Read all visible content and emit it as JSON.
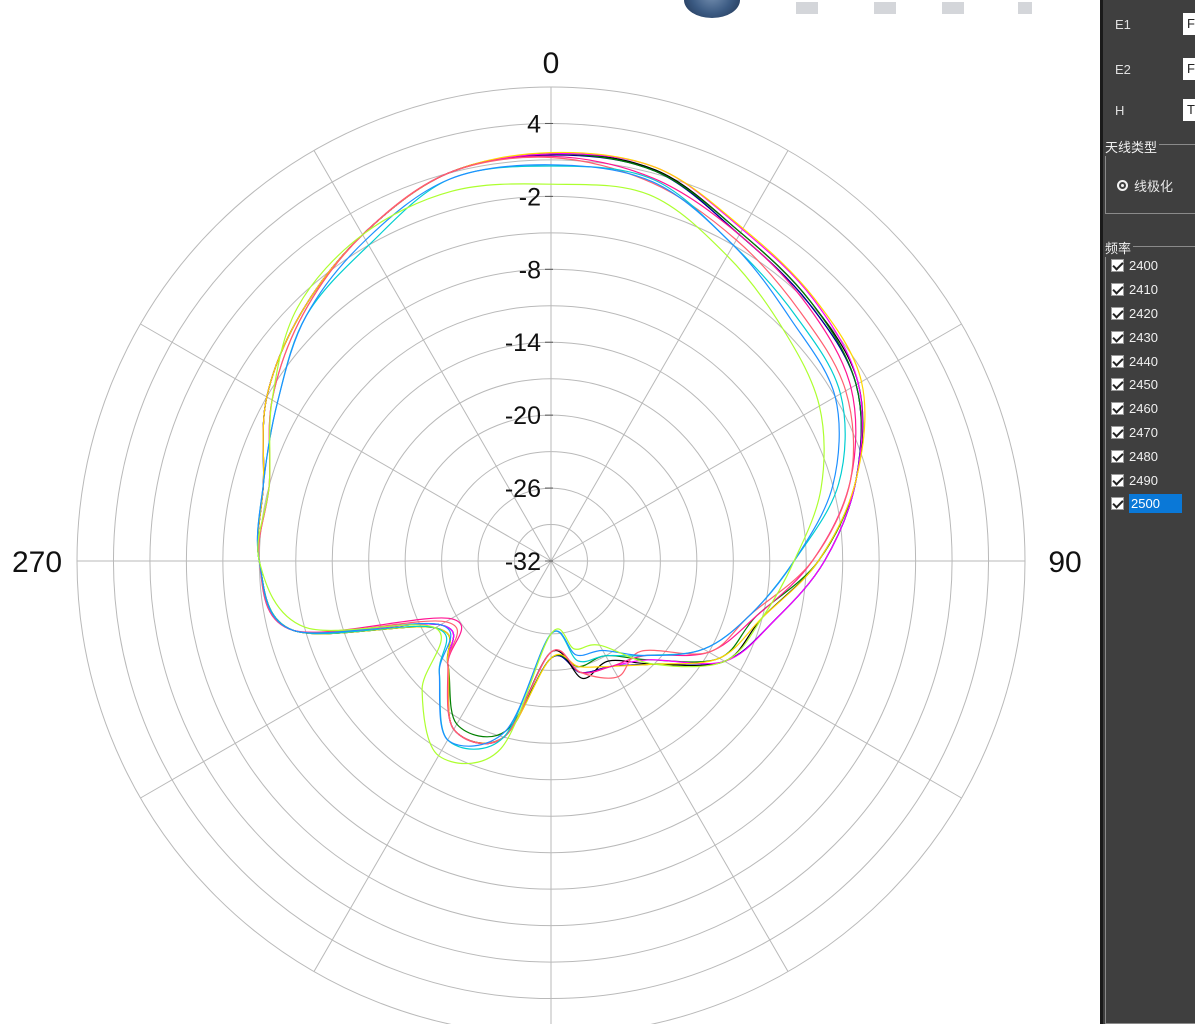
{
  "side_panel": {
    "fields": [
      {
        "label": "E1",
        "value": "F"
      },
      {
        "label": "E2",
        "value": "F"
      },
      {
        "label": "H",
        "value": "T"
      }
    ],
    "antenna_type_group": {
      "title": "天线类型",
      "option": "线极化"
    },
    "frequency_group": {
      "title": "频率",
      "items": [
        "2400",
        "2410",
        "2420",
        "2430",
        "2440",
        "2450",
        "2460",
        "2470",
        "2480",
        "2490",
        "2500"
      ],
      "selected": "2500"
    }
  },
  "chart_data": {
    "type": "polar-line",
    "theta_labels": [
      "0",
      "90",
      "270"
    ],
    "r_tick_labels": [
      "4",
      "-2",
      "-8",
      "-14",
      "-20",
      "-26",
      "-32"
    ],
    "r_range": [
      -32,
      7
    ],
    "theta_direction": "clockwise",
    "theta_zero": "top",
    "grid": true,
    "theta_deg": [
      0,
      15,
      30,
      45,
      60,
      75,
      90,
      105,
      120,
      135,
      150,
      165,
      180,
      195,
      210,
      225,
      240,
      255,
      270,
      285,
      300,
      315,
      330,
      345
    ],
    "series": [
      {
        "name": "2400",
        "color": "#0000ff",
        "values": [
          1.5,
          1.2,
          -1,
          -2,
          -3,
          -6,
          -9.5,
          -13,
          -15.5,
          -20,
          -22,
          -22.5,
          -24,
          -17,
          -16,
          -20,
          -21.5,
          -10,
          -8,
          -7.5,
          -5,
          -3,
          -1,
          1
        ]
      },
      {
        "name": "2410",
        "color": "#00008b",
        "values": [
          1.4,
          1.2,
          -1,
          -2,
          -3,
          -6,
          -9.5,
          -13,
          -15.5,
          -20,
          -22,
          -22.5,
          -24,
          -17,
          -16,
          -20,
          -21.5,
          -10,
          -8,
          -7.5,
          -5,
          -3,
          -1,
          1
        ]
      },
      {
        "name": "2420",
        "color": "#000000",
        "values": [
          1.5,
          1.3,
          -0.8,
          -1.8,
          -2.8,
          -6,
          -10,
          -14,
          -15.5,
          -20,
          -22.5,
          -22,
          -24.5,
          -17,
          -16,
          -20,
          -21,
          -10,
          -8,
          -7.5,
          -5,
          -3,
          -1,
          1
        ]
      },
      {
        "name": "2430",
        "color": "#008000",
        "values": [
          1.5,
          1.2,
          -0.8,
          -1.8,
          -3,
          -6,
          -10,
          -14.5,
          -16,
          -20.5,
          -23,
          -23,
          -24,
          -17.5,
          -16.5,
          -20,
          -21,
          -10,
          -8,
          -7.5,
          -5,
          -3,
          -1,
          1
        ]
      },
      {
        "name": "2440",
        "color": "#ff00ff",
        "values": [
          1.5,
          1.5,
          -0.5,
          -1.5,
          -2.8,
          -6,
          -9.5,
          -13,
          -15.5,
          -20.5,
          -22,
          -22.5,
          -24.5,
          -17,
          -16,
          -20,
          -21.5,
          -10,
          -8,
          -7.5,
          -5,
          -3,
          -1,
          1
        ]
      },
      {
        "name": "2450",
        "color": "#ffd700",
        "values": [
          1.6,
          1.5,
          -0.4,
          -1.4,
          -2.5,
          -6,
          -10,
          -14,
          -16,
          -20,
          -22,
          -23,
          -24,
          -17,
          -16,
          -20,
          -21,
          -10,
          -8,
          -7.5,
          -5,
          -3,
          -1,
          1
        ]
      },
      {
        "name": "2460",
        "color": "#ff1493",
        "values": [
          1.3,
          0.6,
          -1,
          -2.2,
          -3.5,
          -6.5,
          -10.5,
          -14.5,
          -17,
          -21,
          -22,
          -22.5,
          -24.5,
          -17,
          -16,
          -20,
          -22.5,
          -10,
          -8,
          -8,
          -5.5,
          -3.2,
          -1,
          1
        ]
      },
      {
        "name": "2470",
        "color": "#ff6070",
        "values": [
          1.2,
          0.2,
          -1.5,
          -3,
          -4,
          -6.5,
          -10.5,
          -15,
          -17,
          -21.5,
          -21,
          -22.5,
          -24.5,
          -17,
          -16,
          -20,
          -22,
          -10,
          -8,
          -8,
          -5.5,
          -3.2,
          -1,
          1
        ]
      },
      {
        "name": "2480",
        "color": "#00ced1",
        "values": [
          0.5,
          0.5,
          -2,
          -3.5,
          -4.5,
          -7.5,
          -12,
          -15,
          -17.5,
          -21,
          -23,
          -23.5,
          -26,
          -17,
          -15,
          -19,
          -21,
          -10,
          -8,
          -7.5,
          -6,
          -3.5,
          -2,
          0.5
        ]
      },
      {
        "name": "2490",
        "color": "#1e90ff",
        "values": [
          0.6,
          0.3,
          -2,
          -4,
          -5,
          -8,
          -12,
          -15,
          -17.5,
          -21,
          -23.5,
          -24,
          -26,
          -17.5,
          -15,
          -19,
          -21.5,
          -10,
          -8,
          -7.5,
          -6,
          -3.5,
          -1.5,
          0.5
        ]
      },
      {
        "name": "2500",
        "color": "#adff2f",
        "values": [
          -1,
          -0.8,
          -3,
          -5,
          -6.5,
          -9,
          -12,
          -14,
          -15.5,
          -20,
          -24,
          -24.5,
          -26,
          -16,
          -13.5,
          -17,
          -21,
          -11,
          -8,
          -8,
          -5.5,
          -2.5,
          -1,
          -0.5
        ]
      }
    ]
  }
}
